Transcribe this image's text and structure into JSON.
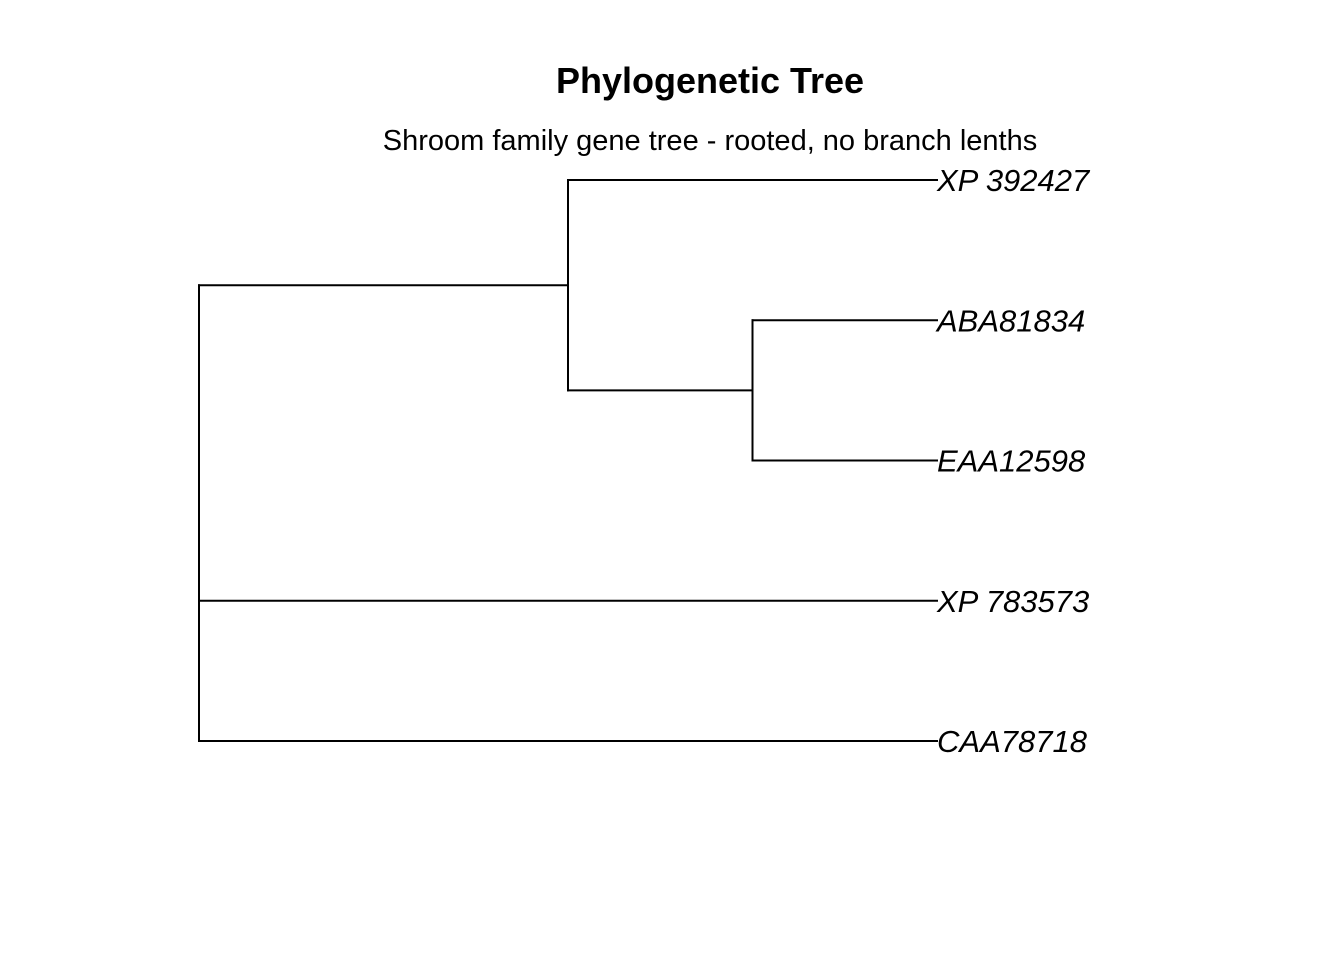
{
  "title": "Phylogenetic Tree",
  "subtitle": "Shroom family gene tree - rooted, no branch lenths",
  "colors": {
    "branch": "#000000",
    "text": "#000000",
    "background": "#ffffff"
  },
  "tree": {
    "rooted": true,
    "branch_lengths": false,
    "tips": [
      "XP 392427",
      "ABA81834",
      "EAA12598",
      "XP 783573",
      "CAA78718"
    ],
    "structure": {
      "name": "root",
      "children": [
        {
          "name": "node-a",
          "children": [
            {
              "tip": 0
            },
            {
              "name": "node-b",
              "children": [
                {
                  "tip": 1
                },
                {
                  "tip": 2
                }
              ]
            }
          ]
        },
        {
          "tip": 3
        },
        {
          "tip": 4
        }
      ]
    }
  }
}
